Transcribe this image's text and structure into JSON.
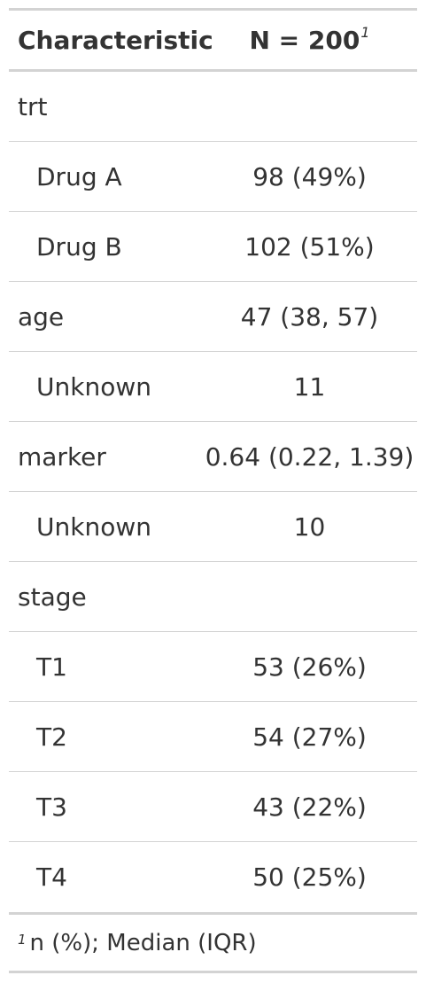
{
  "table": {
    "header": {
      "characteristic": "Characteristic",
      "n": "N = 200",
      "n_footnote_marker": "1"
    },
    "rows": [
      {
        "label": "trt",
        "value": "",
        "indent": false
      },
      {
        "label": "Drug A",
        "value": "98 (49%)",
        "indent": true
      },
      {
        "label": "Drug B",
        "value": "102 (51%)",
        "indent": true
      },
      {
        "label": "age",
        "value": "47 (38, 57)",
        "indent": false
      },
      {
        "label": "Unknown",
        "value": "11",
        "indent": true
      },
      {
        "label": "marker",
        "value": "0.64 (0.22, 1.39)",
        "indent": false
      },
      {
        "label": "Unknown",
        "value": "10",
        "indent": true
      },
      {
        "label": "stage",
        "value": "",
        "indent": false
      },
      {
        "label": "T1",
        "value": "53 (26%)",
        "indent": true
      },
      {
        "label": "T2",
        "value": "54 (27%)",
        "indent": true
      },
      {
        "label": "T3",
        "value": "43 (22%)",
        "indent": true
      },
      {
        "label": "T4",
        "value": "50 (25%)",
        "indent": true
      }
    ],
    "footnote": {
      "marker": "1",
      "text": "n (%); Median (IQR)"
    }
  }
}
